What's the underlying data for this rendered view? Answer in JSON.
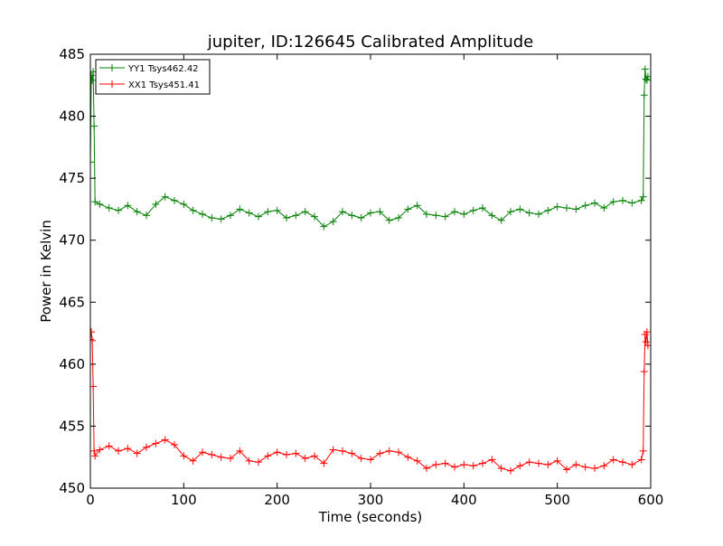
{
  "chart_data": {
    "type": "line",
    "title": "jupiter, ID:126645 Calibrated Amplitude",
    "xlabel": "Time (seconds)",
    "ylabel": "Power in Kelvin",
    "xlim": [
      0,
      600
    ],
    "ylim": [
      450,
      485
    ],
    "xticks": [
      0,
      100,
      200,
      300,
      400,
      500,
      600
    ],
    "yticks": [
      450,
      455,
      460,
      465,
      470,
      475,
      480,
      485
    ],
    "grid": false,
    "legend_position": "top-left",
    "marker": "+",
    "series": [
      {
        "name": "YY1 Tsys462.42",
        "color": "#008000",
        "points": [
          [
            0,
            476.3
          ],
          [
            1,
            483.3
          ],
          [
            2,
            482.9
          ],
          [
            3,
            483.6
          ],
          [
            4,
            479.2
          ],
          [
            5,
            473.1
          ],
          [
            10,
            472.9
          ],
          [
            20,
            472.6
          ],
          [
            30,
            472.4
          ],
          [
            40,
            472.8
          ],
          [
            50,
            472.3
          ],
          [
            60,
            472.0
          ],
          [
            70,
            472.9
          ],
          [
            80,
            473.5
          ],
          [
            90,
            473.2
          ],
          [
            100,
            472.9
          ],
          [
            110,
            472.4
          ],
          [
            120,
            472.1
          ],
          [
            130,
            471.8
          ],
          [
            140,
            471.7
          ],
          [
            150,
            472.0
          ],
          [
            160,
            472.5
          ],
          [
            170,
            472.2
          ],
          [
            180,
            471.9
          ],
          [
            190,
            472.3
          ],
          [
            200,
            472.4
          ],
          [
            210,
            471.8
          ],
          [
            220,
            472.0
          ],
          [
            230,
            472.3
          ],
          [
            240,
            471.9
          ],
          [
            250,
            471.1
          ],
          [
            260,
            471.5
          ],
          [
            270,
            472.3
          ],
          [
            280,
            472.0
          ],
          [
            290,
            471.8
          ],
          [
            300,
            472.2
          ],
          [
            310,
            472.3
          ],
          [
            320,
            471.6
          ],
          [
            330,
            471.8
          ],
          [
            340,
            472.5
          ],
          [
            350,
            472.8
          ],
          [
            360,
            472.1
          ],
          [
            370,
            472.0
          ],
          [
            380,
            471.9
          ],
          [
            390,
            472.3
          ],
          [
            400,
            472.1
          ],
          [
            410,
            472.4
          ],
          [
            420,
            472.6
          ],
          [
            430,
            472.0
          ],
          [
            440,
            471.6
          ],
          [
            450,
            472.3
          ],
          [
            460,
            472.5
          ],
          [
            470,
            472.2
          ],
          [
            480,
            472.1
          ],
          [
            490,
            472.4
          ],
          [
            500,
            472.7
          ],
          [
            510,
            472.6
          ],
          [
            520,
            472.5
          ],
          [
            530,
            472.8
          ],
          [
            540,
            473.0
          ],
          [
            550,
            472.6
          ],
          [
            560,
            473.1
          ],
          [
            570,
            473.2
          ],
          [
            580,
            473.0
          ],
          [
            590,
            473.2
          ],
          [
            592,
            473.5
          ],
          [
            593,
            481.7
          ],
          [
            594,
            483.8
          ],
          [
            595,
            483.0
          ],
          [
            596,
            482.9
          ],
          [
            597,
            483.2
          ]
        ]
      },
      {
        "name": "XX1 Tsys451.41",
        "color": "#ff0000",
        "points": [
          [
            0,
            462.0
          ],
          [
            1,
            462.6
          ],
          [
            2,
            461.9
          ],
          [
            3,
            458.2
          ],
          [
            4,
            453.0
          ],
          [
            5,
            452.6
          ],
          [
            10,
            453.1
          ],
          [
            20,
            453.4
          ],
          [
            30,
            453.0
          ],
          [
            40,
            453.2
          ],
          [
            50,
            452.8
          ],
          [
            60,
            453.3
          ],
          [
            70,
            453.6
          ],
          [
            80,
            453.9
          ],
          [
            90,
            453.5
          ],
          [
            100,
            452.6
          ],
          [
            110,
            452.2
          ],
          [
            120,
            452.9
          ],
          [
            130,
            452.7
          ],
          [
            140,
            452.5
          ],
          [
            150,
            452.4
          ],
          [
            160,
            453.0
          ],
          [
            170,
            452.2
          ],
          [
            180,
            452.1
          ],
          [
            190,
            452.6
          ],
          [
            200,
            452.9
          ],
          [
            210,
            452.7
          ],
          [
            220,
            452.8
          ],
          [
            230,
            452.4
          ],
          [
            240,
            452.6
          ],
          [
            250,
            452.0
          ],
          [
            260,
            453.1
          ],
          [
            270,
            453.0
          ],
          [
            280,
            452.8
          ],
          [
            290,
            452.4
          ],
          [
            300,
            452.3
          ],
          [
            310,
            452.8
          ],
          [
            320,
            453.0
          ],
          [
            330,
            452.9
          ],
          [
            340,
            452.5
          ],
          [
            350,
            452.2
          ],
          [
            360,
            451.6
          ],
          [
            370,
            451.9
          ],
          [
            380,
            452.0
          ],
          [
            390,
            451.7
          ],
          [
            400,
            451.9
          ],
          [
            410,
            451.8
          ],
          [
            420,
            452.0
          ],
          [
            430,
            452.3
          ],
          [
            440,
            451.6
          ],
          [
            450,
            451.4
          ],
          [
            460,
            451.8
          ],
          [
            470,
            452.1
          ],
          [
            480,
            452.0
          ],
          [
            490,
            451.9
          ],
          [
            500,
            452.2
          ],
          [
            510,
            451.5
          ],
          [
            520,
            451.9
          ],
          [
            530,
            451.7
          ],
          [
            540,
            451.6
          ],
          [
            550,
            451.8
          ],
          [
            560,
            452.3
          ],
          [
            570,
            452.1
          ],
          [
            580,
            451.9
          ],
          [
            590,
            452.3
          ],
          [
            592,
            453.0
          ],
          [
            593,
            459.4
          ],
          [
            594,
            462.4
          ],
          [
            595,
            461.8
          ],
          [
            596,
            462.6
          ],
          [
            597,
            461.5
          ]
        ]
      }
    ]
  }
}
